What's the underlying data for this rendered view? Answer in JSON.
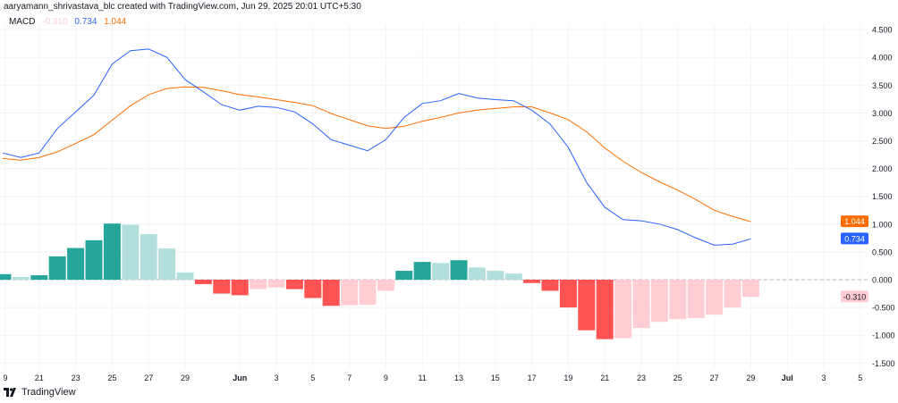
{
  "header": {
    "title": "aaryamann_shrivastava_blc created with TradingView.com, Jun 29, 2025 20:01 UTC+5:30"
  },
  "legend": {
    "name": "MACD",
    "hist": "-0.310",
    "macd": "0.734",
    "signal": "1.044"
  },
  "footer": {
    "logo_text": "TradingView"
  },
  "colors": {
    "macd": "#2962ff",
    "signal": "#ff6d00",
    "hist_pos_up": "#26a69a",
    "hist_pos_down": "#b2dfdb",
    "hist_neg_down": "#ff5252",
    "hist_neg_up": "#ffcdd2"
  },
  "chart_data": {
    "type": "bar+line",
    "title": "MACD",
    "ylim": [
      -1.5,
      4.5
    ],
    "y_ticks": [
      "4.500",
      "4.000",
      "3.500",
      "3.000",
      "2.500",
      "2.000",
      "1.500",
      "1.000",
      "0.500",
      "0.000",
      "-0.500",
      "-1.000",
      "-1.500"
    ],
    "y_tick_values": [
      4.5,
      4,
      3.5,
      3,
      2.5,
      2,
      1.5,
      1,
      0.5,
      0,
      -0.5,
      -1,
      -1.5
    ],
    "x_ticks": [
      {
        "label": "9",
        "day": -10
      },
      {
        "label": "21",
        "day": 2
      },
      {
        "label": "23",
        "day": 4
      },
      {
        "label": "25",
        "day": 6
      },
      {
        "label": "27",
        "day": 8
      },
      {
        "label": "29",
        "day": 10
      },
      {
        "label": "Jun",
        "day": 13
      },
      {
        "label": "3",
        "day": 15
      },
      {
        "label": "5",
        "day": 17
      },
      {
        "label": "7",
        "day": 19
      },
      {
        "label": "9",
        "day": 21
      },
      {
        "label": "11",
        "day": 23
      },
      {
        "label": "13",
        "day": 25
      },
      {
        "label": "15",
        "day": 27
      },
      {
        "label": "17",
        "day": 29
      },
      {
        "label": "19",
        "day": 31
      },
      {
        "label": "21",
        "day": 33
      },
      {
        "label": "23",
        "day": 35
      },
      {
        "label": "25",
        "day": 37
      },
      {
        "label": "27",
        "day": 39
      },
      {
        "label": "29",
        "day": 41
      },
      {
        "label": "Jul",
        "day": 43
      },
      {
        "label": "3",
        "day": 45
      },
      {
        "label": "5",
        "day": 47
      }
    ],
    "x_start": "May 19",
    "histogram": [
      0.1,
      0.05,
      0.08,
      0.42,
      0.57,
      0.71,
      1.01,
      0.99,
      0.82,
      0.56,
      0.13,
      -0.08,
      -0.25,
      -0.28,
      -0.17,
      -0.14,
      -0.17,
      -0.33,
      -0.47,
      -0.46,
      -0.45,
      -0.2,
      0.16,
      0.32,
      0.3,
      0.35,
      0.22,
      0.16,
      0.11,
      -0.06,
      -0.2,
      -0.5,
      -0.91,
      -1.07,
      -1.05,
      -0.87,
      -0.76,
      -0.71,
      -0.69,
      -0.63,
      -0.5,
      -0.31
    ],
    "macd": [
      2.28,
      2.2,
      2.28,
      2.72,
      3.02,
      3.32,
      3.88,
      4.12,
      4.15,
      4.0,
      3.6,
      3.38,
      3.15,
      3.05,
      3.12,
      3.1,
      3.02,
      2.8,
      2.52,
      2.42,
      2.32,
      2.52,
      2.92,
      3.17,
      3.22,
      3.35,
      3.27,
      3.24,
      3.22,
      3.05,
      2.8,
      2.38,
      1.75,
      1.3,
      1.08,
      1.06,
      1.0,
      0.9,
      0.75,
      0.62,
      0.64,
      0.734
    ],
    "signal": [
      2.18,
      2.15,
      2.2,
      2.3,
      2.45,
      2.61,
      2.87,
      3.13,
      3.33,
      3.44,
      3.47,
      3.46,
      3.4,
      3.33,
      3.29,
      3.24,
      3.19,
      3.13,
      2.99,
      2.88,
      2.77,
      2.72,
      2.76,
      2.85,
      2.92,
      3.0,
      3.05,
      3.08,
      3.11,
      3.11,
      3.0,
      2.88,
      2.66,
      2.37,
      2.13,
      1.93,
      1.76,
      1.61,
      1.44,
      1.25,
      1.14,
      1.044
    ],
    "last_labels": {
      "signal": "1.044",
      "macd": "0.734",
      "hist": "-0.310"
    }
  }
}
